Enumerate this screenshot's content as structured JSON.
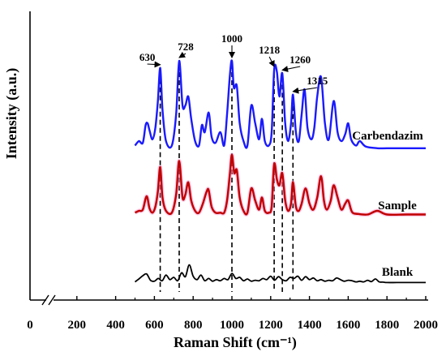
{
  "chart_data": {
    "type": "line",
    "title": "",
    "xlabel": "Raman Shift (cm⁻¹)",
    "ylabel": "Intensity (a.u.)",
    "xlim": [
      0,
      2000
    ],
    "axis_break": "after 0",
    "x_ticks": [
      "0",
      "200",
      "400",
      "600",
      "800",
      "1000",
      "1200",
      "1400",
      "1600",
      "1800",
      "2000"
    ],
    "grid": false,
    "series": [
      {
        "name": "Carbendazim",
        "color": "#1a1aff",
        "x": [
          500,
          520,
          540,
          555,
          565,
          575,
          590,
          605,
          618,
          630,
          642,
          660,
          690,
          712,
          728,
          745,
          760,
          775,
          790,
          810,
          830,
          845,
          860,
          880,
          895,
          915,
          940,
          960,
          975,
          990,
          1000,
          1010,
          1025,
          1040,
          1060,
          1080,
          1100,
          1120,
          1140,
          1155,
          1170,
          1190,
          1205,
          1218,
          1232,
          1245,
          1260,
          1275,
          1290,
          1305,
          1315,
          1330,
          1345,
          1360,
          1375,
          1390,
          1410,
          1425,
          1440,
          1460,
          1480,
          1500,
          1525,
          1545,
          1565,
          1585,
          1600,
          1615,
          1640,
          1660,
          1690,
          1750,
          1800,
          1900,
          2000
        ],
        "values": [
          0.05,
          0.1,
          0.08,
          0.28,
          0.3,
          0.22,
          0.12,
          0.25,
          0.55,
          0.92,
          0.45,
          0.1,
          0.05,
          0.4,
          1.0,
          0.5,
          0.5,
          0.6,
          0.35,
          0.1,
          0.05,
          0.28,
          0.2,
          0.42,
          0.15,
          0.08,
          0.2,
          0.05,
          0.4,
          0.85,
          1.0,
          0.7,
          0.72,
          0.3,
          0.1,
          0.05,
          0.5,
          0.3,
          0.12,
          0.35,
          0.1,
          0.05,
          0.2,
          0.9,
          0.88,
          0.6,
          0.86,
          0.3,
          0.1,
          0.3,
          0.62,
          0.2,
          0.1,
          0.4,
          0.68,
          0.25,
          0.12,
          0.25,
          0.6,
          0.82,
          0.3,
          0.12,
          0.55,
          0.2,
          0.1,
          0.18,
          0.3,
          0.12,
          0.05,
          0.1,
          0.04,
          0.02,
          0.02,
          0.02,
          0.02
        ]
      },
      {
        "name": "Sample",
        "color": "#c00000",
        "x": [
          500,
          520,
          540,
          560,
          575,
          590,
          605,
          618,
          630,
          642,
          660,
          690,
          712,
          728,
          745,
          760,
          775,
          790,
          810,
          830,
          850,
          870,
          880,
          895,
          915,
          940,
          960,
          975,
          990,
          1000,
          1012,
          1025,
          1040,
          1060,
          1080,
          1100,
          1120,
          1140,
          1155,
          1170,
          1190,
          1205,
          1218,
          1232,
          1245,
          1260,
          1275,
          1290,
          1305,
          1315,
          1330,
          1345,
          1360,
          1380,
          1400,
          1420,
          1440,
          1460,
          1475,
          1490,
          1510,
          1525,
          1545,
          1565,
          1585,
          1600,
          1620,
          1650,
          1700,
          1750,
          1800,
          1900,
          2000
        ],
        "values": [
          0.05,
          0.08,
          0.1,
          0.32,
          0.12,
          0.05,
          0.15,
          0.4,
          0.8,
          0.3,
          0.08,
          0.05,
          0.35,
          0.9,
          0.3,
          0.35,
          0.55,
          0.25,
          0.08,
          0.05,
          0.2,
          0.4,
          0.42,
          0.15,
          0.05,
          0.05,
          0.05,
          0.25,
          0.7,
          1.0,
          0.7,
          0.75,
          0.3,
          0.08,
          0.05,
          0.45,
          0.25,
          0.1,
          0.3,
          0.08,
          0.05,
          0.15,
          0.85,
          0.6,
          0.5,
          0.7,
          0.25,
          0.08,
          0.2,
          0.55,
          0.15,
          0.08,
          0.2,
          0.45,
          0.2,
          0.1,
          0.3,
          0.65,
          0.25,
          0.1,
          0.25,
          0.5,
          0.3,
          0.1,
          0.2,
          0.25,
          0.06,
          0.03,
          0.02,
          0.08,
          0.02,
          0.02,
          0.02
        ]
      },
      {
        "name": "Blank",
        "color": "#000000",
        "x": [
          500,
          520,
          540,
          560,
          580,
          600,
          620,
          640,
          660,
          680,
          700,
          720,
          740,
          760,
          780,
          800,
          820,
          840,
          860,
          880,
          900,
          920,
          940,
          960,
          980,
          1000,
          1020,
          1040,
          1060,
          1080,
          1100,
          1120,
          1140,
          1160,
          1180,
          1200,
          1220,
          1240,
          1260,
          1280,
          1300,
          1320,
          1340,
          1360,
          1380,
          1400,
          1420,
          1440,
          1460,
          1480,
          1500,
          1520,
          1540,
          1560,
          1580,
          1600,
          1620,
          1640,
          1660,
          1680,
          1700,
          1720,
          1740,
          1760,
          1780,
          1800,
          1850,
          1900,
          1950,
          2000
        ],
        "values": [
          0.05,
          0.18,
          0.32,
          0.4,
          0.12,
          0.08,
          0.2,
          0.1,
          0.35,
          0.15,
          0.25,
          0.1,
          0.45,
          0.28,
          0.8,
          0.3,
          0.15,
          0.35,
          0.1,
          0.2,
          0.08,
          0.15,
          0.1,
          0.2,
          0.15,
          0.42,
          0.2,
          0.25,
          0.1,
          0.18,
          0.08,
          0.12,
          0.1,
          0.2,
          0.15,
          0.3,
          0.12,
          0.28,
          0.15,
          0.1,
          0.25,
          0.2,
          0.3,
          0.12,
          0.28,
          0.15,
          0.22,
          0.1,
          0.15,
          0.08,
          0.12,
          0.1,
          0.22,
          0.15,
          0.08,
          0.12,
          0.1,
          0.05,
          0.08,
          0.05,
          0.12,
          0.06,
          0.18,
          0.05,
          0.04,
          0.02,
          0.02,
          0.02,
          0.02,
          0.02
        ]
      }
    ],
    "peak_annotations": [
      {
        "label": "630",
        "x": 630
      },
      {
        "label": "728",
        "x": 728
      },
      {
        "label": "1000",
        "x": 1000
      },
      {
        "label": "1218",
        "x": 1218
      },
      {
        "label": "1260",
        "x": 1260
      },
      {
        "label": "1315",
        "x": 1315
      }
    ]
  }
}
